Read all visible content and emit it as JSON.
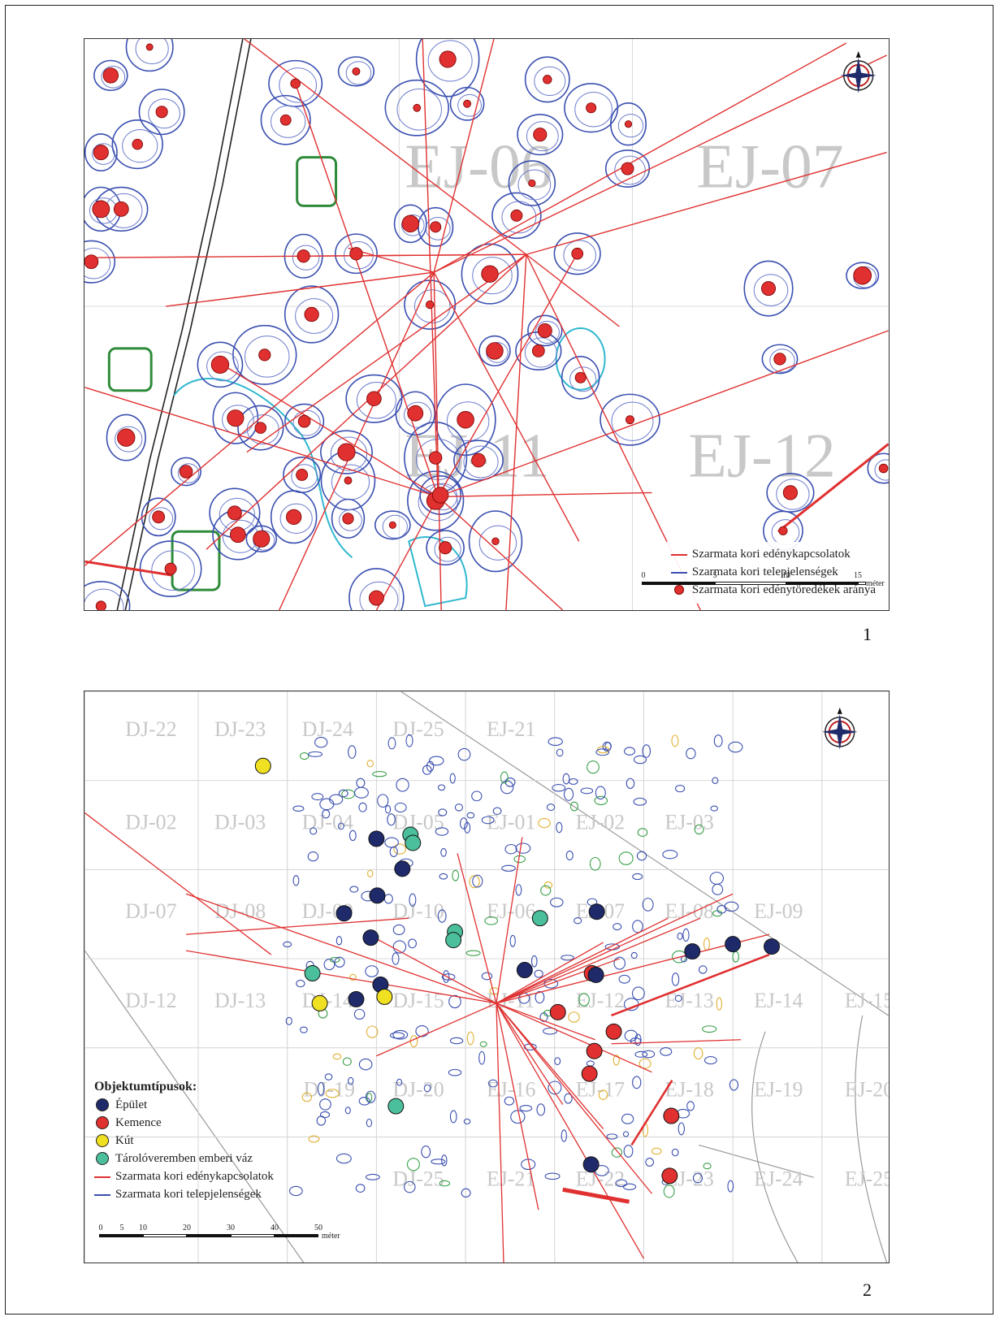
{
  "map1": {
    "grid_labels": [
      "EJ-06",
      "EJ-07",
      "EJ-11",
      "EJ-12"
    ],
    "legend": {
      "vessel_links": "Szarmata kori edénykapcsolatok",
      "settlement_features": "Szarmata kori telepjelenségek",
      "sherd_ratio": "Szarmata kori edénytöredékek aránya"
    },
    "scale": {
      "ticks": [
        "0",
        "5",
        "10",
        "15"
      ],
      "unit": "méter"
    },
    "panel_number": "1"
  },
  "map2": {
    "grid_labels": [
      "DJ-22",
      "DJ-23",
      "DJ-24",
      "DJ-25",
      "EJ-21",
      "DJ-02",
      "DJ-03",
      "DJ-04",
      "DJ-05",
      "EJ-01",
      "EJ-02",
      "EJ-03",
      "DJ-07",
      "DJ-08",
      "DJ-09",
      "DJ-10",
      "EJ-06",
      "EJ-07",
      "EJ-08",
      "EJ-09",
      "DJ-12",
      "DJ-13",
      "DJ-14",
      "DJ-15",
      "EJ-11",
      "EJ-12",
      "EJ-13",
      "EJ-14",
      "EJ-15",
      "DJ-19",
      "DJ-20",
      "EJ-16",
      "EJ-17",
      "EJ-18",
      "EJ-19",
      "EJ-20",
      "DJ-25",
      "EJ-21",
      "EJ-22",
      "EJ-23",
      "EJ-24",
      "EJ-25"
    ],
    "legend": {
      "title": "Objektumtípusok:",
      "building": "Épület",
      "kiln": "Kemence",
      "well": "Kút",
      "storage_pit_skeleton": "Tárolóveremben emberi váz",
      "vessel_links": "Szarmata kori edénykapcsolatok",
      "settlement_features": "Szarmata kori telepjelenségek"
    },
    "scale": {
      "ticks": [
        "0",
        "5",
        "10",
        "20",
        "30",
        "40",
        "50"
      ],
      "unit": "méter"
    },
    "panel_number": "2"
  },
  "colors": {
    "link_line": "#e03030",
    "feature_outline": "#3a4fb0",
    "building": "#1f2a6b",
    "kiln": "#e03030",
    "well": "#f0e022",
    "storage_pit": "#4bbf9b",
    "grid_label": "#c8c8c8"
  }
}
